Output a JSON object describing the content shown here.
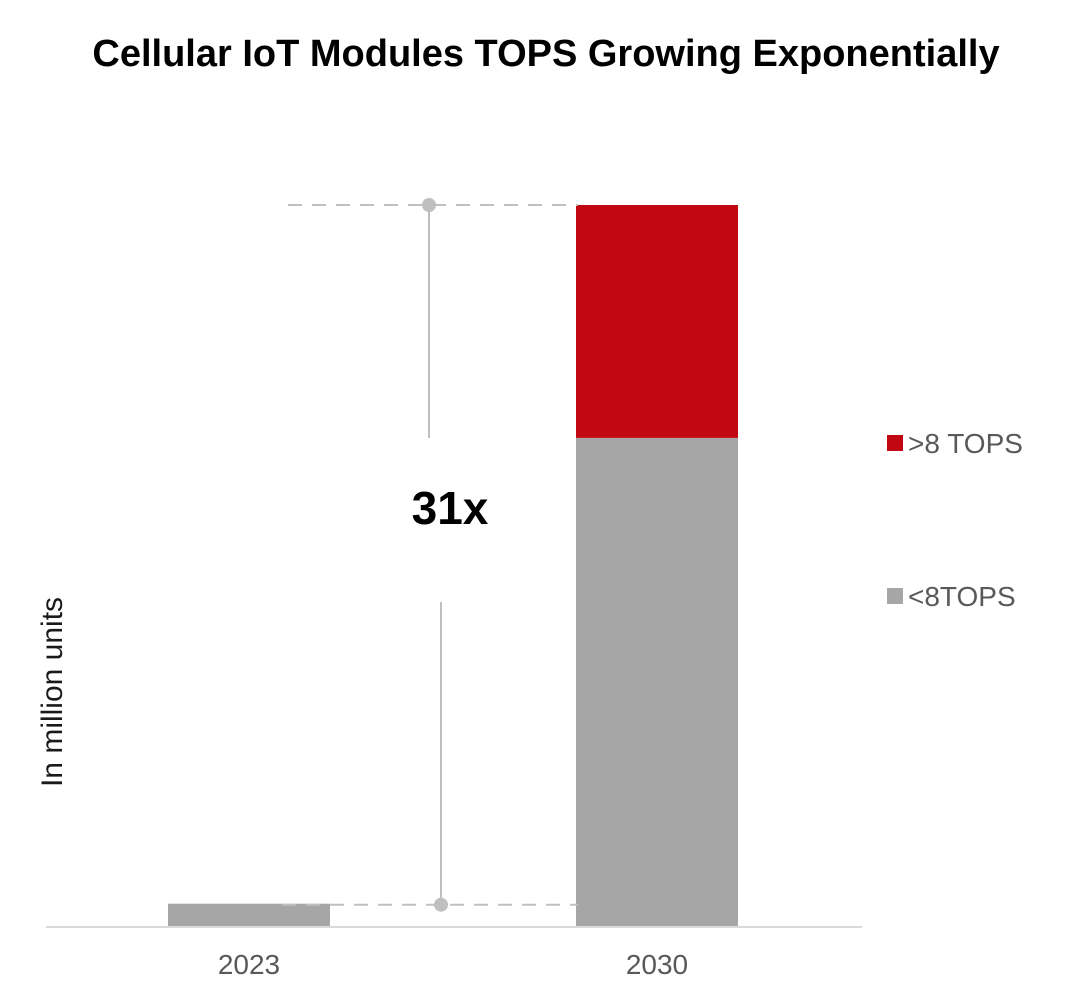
{
  "chart_data": {
    "type": "bar",
    "stacked": true,
    "title": "Cellular IoT Modules TOPS Growing Exponentially",
    "xlabel": "",
    "ylabel": "In million units",
    "categories": [
      "2023",
      "2030"
    ],
    "series": [
      {
        "name": "<8TOPS",
        "color": "#a6a6a6",
        "values": [
          1,
          21
        ]
      },
      {
        "name": ">8 TOPS",
        "color": "#c00712",
        "values": [
          0,
          10
        ]
      }
    ],
    "ylim": [
      0,
      31
    ],
    "grid": false,
    "legend_position": "right",
    "annotation": {
      "text": "31x",
      "from_category": "2023",
      "to_category": "2030"
    }
  }
}
